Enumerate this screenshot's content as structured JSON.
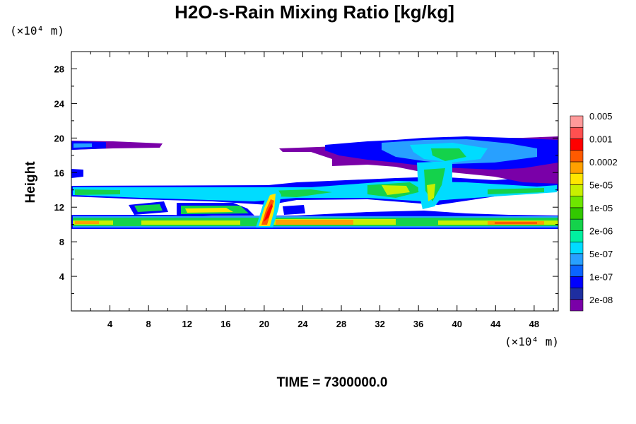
{
  "chart_data": {
    "type": "heatmap",
    "title": "H2O-s-Rain Mixing Ratio [kg/kg]",
    "ylabel": "Height",
    "y_unit": "(×10⁴ m)",
    "x_unit": "(×10⁴ m)",
    "x_ticks": [
      4,
      8,
      12,
      16,
      20,
      24,
      28,
      32,
      36,
      40,
      44,
      48
    ],
    "y_ticks": [
      4,
      8,
      12,
      16,
      20,
      24,
      28
    ],
    "xlim": [
      0,
      50.5
    ],
    "ylim": [
      0,
      30
    ],
    "colorbar": {
      "colors": [
        "#7a00a8",
        "#1e2ea0",
        "#0000ff",
        "#0a64ff",
        "#28a0ff",
        "#00dcff",
        "#00f0a0",
        "#14d24b",
        "#32c800",
        "#6ee600",
        "#c8f000",
        "#ffe600",
        "#ffa000",
        "#ff5a00",
        "#ff0000",
        "#ff5050",
        "#ff9a9a"
      ],
      "labels": [
        "2e-08",
        "1e-07",
        "5e-07",
        "2e-06",
        "1e-05",
        "5e-05",
        "0.0002",
        "0.001",
        "0.005"
      ]
    },
    "footer": "TIME = 7300000.0"
  }
}
